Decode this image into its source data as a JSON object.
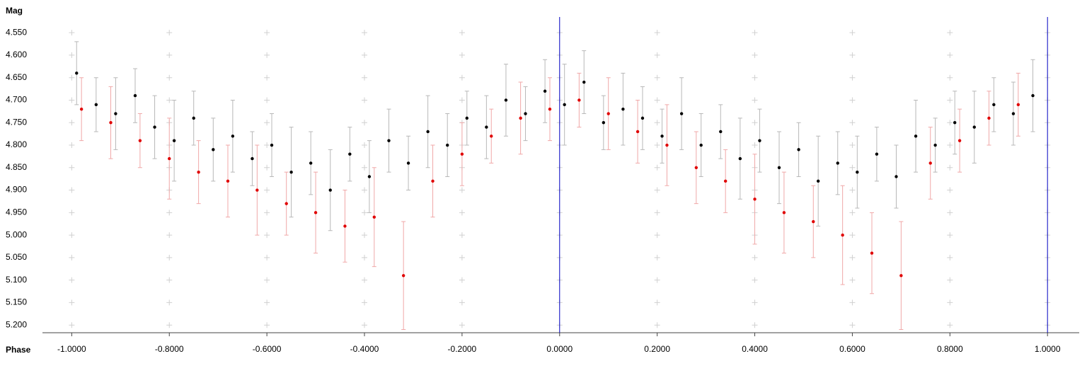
{
  "chart_data": {
    "type": "scatter",
    "x_label": "Phase",
    "y_label": "Mag",
    "xlim": [
      -1.06,
      1.065
    ],
    "ylim": [
      4.512,
      5.217
    ],
    "y_inverted": true,
    "xticks": [
      {
        "value": -1.0,
        "label": "-1.0000"
      },
      {
        "value": -0.8,
        "label": "-0.8000"
      },
      {
        "value": -0.6,
        "label": "-0.6000"
      },
      {
        "value": -0.4,
        "label": "-0.4000"
      },
      {
        "value": -0.2,
        "label": "-0.2000"
      },
      {
        "value": 0,
        "label": "0.0000"
      },
      {
        "value": 0.2,
        "label": "0.2000"
      },
      {
        "value": 0.4,
        "label": "0.4000"
      },
      {
        "value": 0.6,
        "label": "0.6000"
      },
      {
        "value": 0.8,
        "label": "0.8000"
      },
      {
        "value": 1.0,
        "label": "1.0000"
      }
    ],
    "yticks": [
      {
        "value": 4.55,
        "label": "4.550"
      },
      {
        "value": 4.6,
        "label": "4.600"
      },
      {
        "value": 4.65,
        "label": "4.650"
      },
      {
        "value": 4.7,
        "label": "4.700"
      },
      {
        "value": 4.75,
        "label": "4.750"
      },
      {
        "value": 4.8,
        "label": "4.800"
      },
      {
        "value": 4.85,
        "label": "4.850"
      },
      {
        "value": 4.9,
        "label": "4.900"
      },
      {
        "value": 4.95,
        "label": "4.950"
      },
      {
        "value": 5.0,
        "label": "5.000"
      },
      {
        "value": 5.05,
        "label": "5.050"
      },
      {
        "value": 5.1,
        "label": "5.100"
      },
      {
        "value": 5.15,
        "label": "5.150"
      },
      {
        "value": 5.2,
        "label": "5.200"
      }
    ],
    "grid": true,
    "grid_color": "#d0d0d0",
    "markers": [
      0,
      1
    ],
    "marker_color": "#0000c0",
    "series": [
      {
        "color": "#000000",
        "error_color": "#b8b8b8",
        "x": [
          -0.99,
          -0.95,
          -0.91,
          -0.87,
          -0.83,
          -0.79,
          -0.75,
          -0.71,
          -0.67,
          -0.63,
          -0.59,
          -0.55,
          -0.51,
          -0.47,
          -0.43,
          -0.39,
          -0.35,
          -0.31,
          -0.27,
          -0.23,
          -0.19,
          -0.15,
          -0.11,
          -0.07,
          -0.03,
          0.01,
          0.05,
          0.09,
          0.13,
          0.17,
          0.21,
          0.25,
          0.29,
          0.33,
          0.37,
          0.41,
          0.45,
          0.49,
          0.53,
          0.57,
          0.61,
          0.65,
          0.69,
          0.73,
          0.77,
          0.81,
          0.85,
          0.89,
          0.93,
          0.97
        ],
        "values": [
          4.64,
          4.71,
          4.73,
          4.69,
          4.76,
          4.79,
          4.74,
          4.81,
          4.78,
          4.83,
          4.8,
          4.86,
          4.84,
          4.9,
          4.82,
          4.87,
          4.79,
          4.84,
          4.77,
          4.8,
          4.74,
          4.76,
          4.7,
          4.73,
          4.68,
          4.71,
          4.66,
          4.75,
          4.72,
          4.74,
          4.78,
          4.73,
          4.8,
          4.77,
          4.83,
          4.79,
          4.85,
          4.81,
          4.88,
          4.84,
          4.86,
          4.82,
          4.87,
          4.78,
          4.8,
          4.75,
          4.76,
          4.71,
          4.73,
          4.69
        ],
        "errors": [
          0.07,
          0.06,
          0.08,
          0.06,
          0.07,
          0.09,
          0.06,
          0.07,
          0.08,
          0.06,
          0.07,
          0.1,
          0.07,
          0.09,
          0.06,
          0.08,
          0.07,
          0.06,
          0.08,
          0.07,
          0.06,
          0.07,
          0.08,
          0.06,
          0.07,
          0.09,
          0.07,
          0.06,
          0.08,
          0.07,
          0.06,
          0.08,
          0.07,
          0.06,
          0.09,
          0.07,
          0.08,
          0.06,
          0.1,
          0.07,
          0.08,
          0.06,
          0.07,
          0.08,
          0.06,
          0.07,
          0.08,
          0.06,
          0.07,
          0.08
        ]
      },
      {
        "color": "#e00000",
        "error_color": "#f0a8a8",
        "x": [
          -0.98,
          -0.92,
          -0.86,
          -0.8,
          -0.74,
          -0.68,
          -0.62,
          -0.56,
          -0.5,
          -0.44,
          -0.38,
          -0.32,
          -0.26,
          -0.2,
          -0.14,
          -0.08,
          -0.02,
          0.04,
          0.1,
          0.16,
          0.22,
          0.28,
          0.34,
          0.4,
          0.46,
          0.52,
          0.58,
          0.64,
          0.7,
          0.76,
          0.82,
          0.88,
          0.94
        ],
        "values": [
          4.72,
          4.75,
          4.79,
          4.83,
          4.86,
          4.88,
          4.9,
          4.93,
          4.95,
          4.98,
          4.96,
          5.09,
          4.88,
          4.82,
          4.78,
          4.74,
          4.72,
          4.7,
          4.73,
          4.77,
          4.8,
          4.85,
          4.88,
          4.92,
          4.95,
          4.97,
          5.0,
          5.04,
          5.09,
          4.84,
          4.79,
          4.74,
          4.71
        ],
        "errors": [
          0.07,
          0.08,
          0.06,
          0.09,
          0.07,
          0.08,
          0.1,
          0.07,
          0.09,
          0.08,
          0.11,
          0.12,
          0.08,
          0.07,
          0.06,
          0.08,
          0.07,
          0.06,
          0.08,
          0.07,
          0.09,
          0.08,
          0.07,
          0.1,
          0.09,
          0.08,
          0.11,
          0.09,
          0.12,
          0.08,
          0.07,
          0.06,
          0.07
        ]
      }
    ]
  }
}
